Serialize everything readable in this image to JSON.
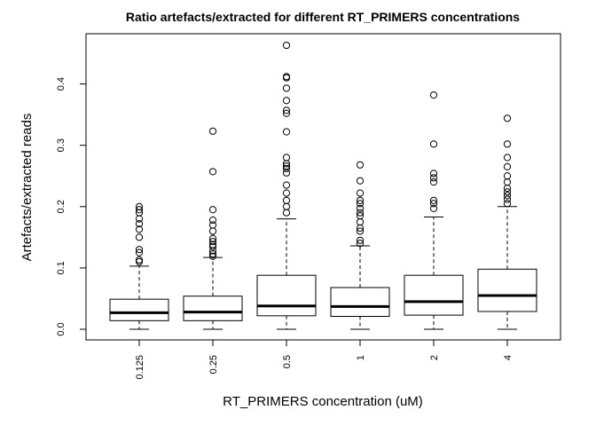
{
  "chart_data": {
    "type": "boxplot",
    "title": "Ratio artefacts/extracted for different RT_PRIMERS concentrations",
    "xlabel": "RT_PRIMERS concentration (uM)",
    "ylabel": "Artefacts/extracted reads",
    "ylim": [
      -0.02,
      0.475
    ],
    "yticks": [
      "0.0",
      "0.1",
      "0.2",
      "0.3",
      "0.4"
    ],
    "grid": false,
    "categories": [
      "0.125",
      "0.25",
      "0.5",
      "1",
      "2",
      "4"
    ],
    "boxes": [
      {
        "min": 0.0,
        "q1": 0.014,
        "median": 0.027,
        "q3": 0.049,
        "max": 0.103,
        "outliers": [
          0.11,
          0.113,
          0.125,
          0.13,
          0.15,
          0.163,
          0.172,
          0.18,
          0.19,
          0.195,
          0.2
        ]
      },
      {
        "min": 0.0,
        "q1": 0.014,
        "median": 0.028,
        "q3": 0.054,
        "max": 0.117,
        "outliers": [
          0.119,
          0.123,
          0.128,
          0.135,
          0.138,
          0.143,
          0.148,
          0.16,
          0.17,
          0.178,
          0.195,
          0.257,
          0.323
        ]
      },
      {
        "min": 0.0,
        "q1": 0.022,
        "median": 0.038,
        "q3": 0.088,
        "max": 0.18,
        "outliers": [
          0.19,
          0.2,
          0.21,
          0.222,
          0.235,
          0.255,
          0.262,
          0.266,
          0.27,
          0.28,
          0.322,
          0.352,
          0.357,
          0.373,
          0.393,
          0.41,
          0.412,
          0.463
        ]
      },
      {
        "min": 0.0,
        "q1": 0.021,
        "median": 0.037,
        "q3": 0.068,
        "max": 0.136,
        "outliers": [
          0.14,
          0.145,
          0.16,
          0.165,
          0.175,
          0.185,
          0.19,
          0.197,
          0.205,
          0.21,
          0.222,
          0.242,
          0.268
        ]
      },
      {
        "min": 0.0,
        "q1": 0.023,
        "median": 0.045,
        "q3": 0.088,
        "max": 0.183,
        "outliers": [
          0.197,
          0.205,
          0.21,
          0.24,
          0.247,
          0.254,
          0.302,
          0.382
        ]
      },
      {
        "min": 0.0,
        "q1": 0.029,
        "median": 0.055,
        "q3": 0.098,
        "max": 0.2,
        "outliers": [
          0.205,
          0.212,
          0.218,
          0.224,
          0.23,
          0.24,
          0.25,
          0.265,
          0.28,
          0.302,
          0.344
        ]
      }
    ]
  }
}
